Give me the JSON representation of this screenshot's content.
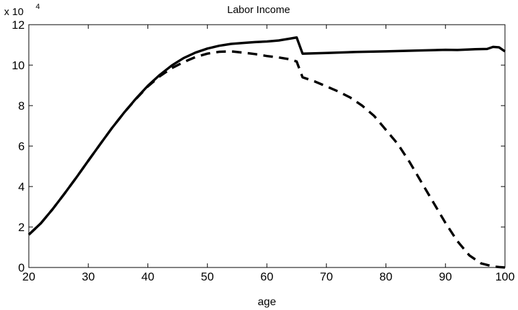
{
  "chart_data": {
    "type": "line",
    "title": "Labor Income",
    "xlabel": "age",
    "ylabel": "",
    "y_multiplier": {
      "base": "x 10",
      "exponent": "4"
    },
    "xlim": [
      20,
      100
    ],
    "ylim": [
      0,
      12
    ],
    "x_ticks": [
      "20",
      "30",
      "40",
      "50",
      "60",
      "70",
      "80",
      "90",
      "100"
    ],
    "y_ticks": [
      "0",
      "2",
      "4",
      "6",
      "8",
      "10",
      "12"
    ],
    "grid": false,
    "legend": "none",
    "series": [
      {
        "style": "solid",
        "points": [
          [
            20,
            1.62
          ],
          [
            22,
            2.18
          ],
          [
            24,
            2.88
          ],
          [
            26,
            3.65
          ],
          [
            28,
            4.45
          ],
          [
            30,
            5.28
          ],
          [
            32,
            6.1
          ],
          [
            34,
            6.9
          ],
          [
            36,
            7.65
          ],
          [
            38,
            8.35
          ],
          [
            40,
            8.98
          ],
          [
            42,
            9.52
          ],
          [
            44,
            9.98
          ],
          [
            46,
            10.35
          ],
          [
            48,
            10.62
          ],
          [
            50,
            10.82
          ],
          [
            52,
            10.96
          ],
          [
            54,
            11.05
          ],
          [
            56,
            11.1
          ],
          [
            58,
            11.14
          ],
          [
            60,
            11.17
          ],
          [
            62,
            11.22
          ],
          [
            64,
            11.32
          ],
          [
            65,
            11.37
          ],
          [
            66,
            10.57
          ],
          [
            70,
            10.6
          ],
          [
            75,
            10.65
          ],
          [
            80,
            10.68
          ],
          [
            85,
            10.72
          ],
          [
            90,
            10.76
          ],
          [
            92,
            10.75
          ],
          [
            95,
            10.79
          ],
          [
            97,
            10.8
          ],
          [
            98,
            10.9
          ],
          [
            99,
            10.88
          ],
          [
            100,
            10.68
          ]
        ]
      },
      {
        "style": "dashed",
        "points": [
          [
            20,
            1.62
          ],
          [
            22,
            2.18
          ],
          [
            24,
            2.88
          ],
          [
            26,
            3.65
          ],
          [
            28,
            4.45
          ],
          [
            30,
            5.28
          ],
          [
            32,
            6.1
          ],
          [
            34,
            6.9
          ],
          [
            36,
            7.65
          ],
          [
            38,
            8.33
          ],
          [
            40,
            8.95
          ],
          [
            42,
            9.45
          ],
          [
            44,
            9.85
          ],
          [
            46,
            10.15
          ],
          [
            48,
            10.4
          ],
          [
            50,
            10.57
          ],
          [
            52,
            10.66
          ],
          [
            54,
            10.68
          ],
          [
            56,
            10.62
          ],
          [
            58,
            10.55
          ],
          [
            60,
            10.45
          ],
          [
            62,
            10.38
          ],
          [
            64,
            10.28
          ],
          [
            65,
            10.18
          ],
          [
            66,
            9.4
          ],
          [
            68,
            9.2
          ],
          [
            70,
            8.95
          ],
          [
            72,
            8.7
          ],
          [
            74,
            8.4
          ],
          [
            76,
            8.0
          ],
          [
            78,
            7.5
          ],
          [
            80,
            6.8
          ],
          [
            82,
            6.1
          ],
          [
            84,
            5.2
          ],
          [
            86,
            4.2
          ],
          [
            88,
            3.2
          ],
          [
            90,
            2.2
          ],
          [
            92,
            1.3
          ],
          [
            94,
            0.6
          ],
          [
            96,
            0.2
          ],
          [
            98,
            0.05
          ],
          [
            99,
            0.02
          ],
          [
            100,
            0.0
          ]
        ]
      }
    ]
  }
}
